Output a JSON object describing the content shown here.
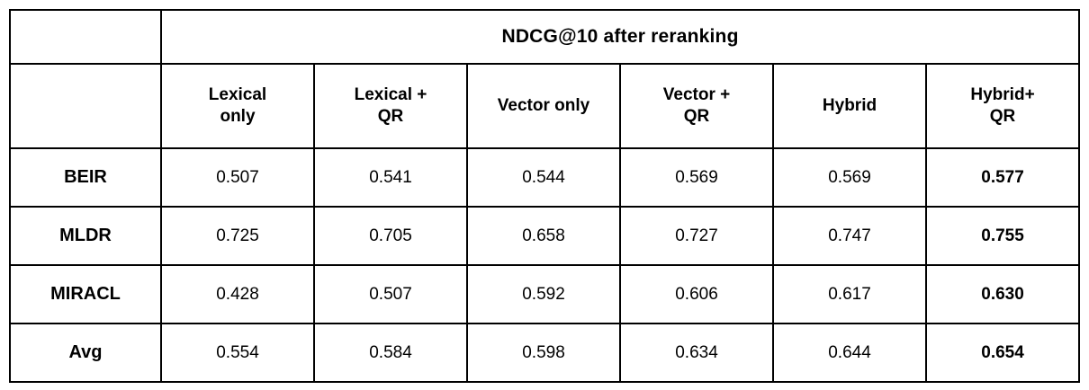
{
  "chart_data": {
    "type": "table",
    "title": "NDCG@10 after reranking",
    "columns": [
      "Lexical\nonly",
      "Lexical +\nQR",
      "Vector only",
      "Vector +\nQR",
      "Hybrid",
      "Hybrid+\nQR"
    ],
    "rows": [
      {
        "label": "BEIR",
        "values": [
          "0.507",
          "0.541",
          "0.544",
          "0.569",
          "0.569",
          "0.577"
        ]
      },
      {
        "label": "MLDR",
        "values": [
          "0.725",
          "0.705",
          "0.658",
          "0.727",
          "0.747",
          "0.755"
        ]
      },
      {
        "label": "MIRACL",
        "values": [
          "0.428",
          "0.507",
          "0.592",
          "0.606",
          "0.617",
          "0.630"
        ]
      },
      {
        "label": "Avg",
        "values": [
          "0.554",
          "0.584",
          "0.598",
          "0.634",
          "0.644",
          "0.654"
        ]
      }
    ],
    "notes": {
      "bold_column": "Hybrid+ QR",
      "border_color": "#000000",
      "background_color": "#ffffff"
    }
  }
}
